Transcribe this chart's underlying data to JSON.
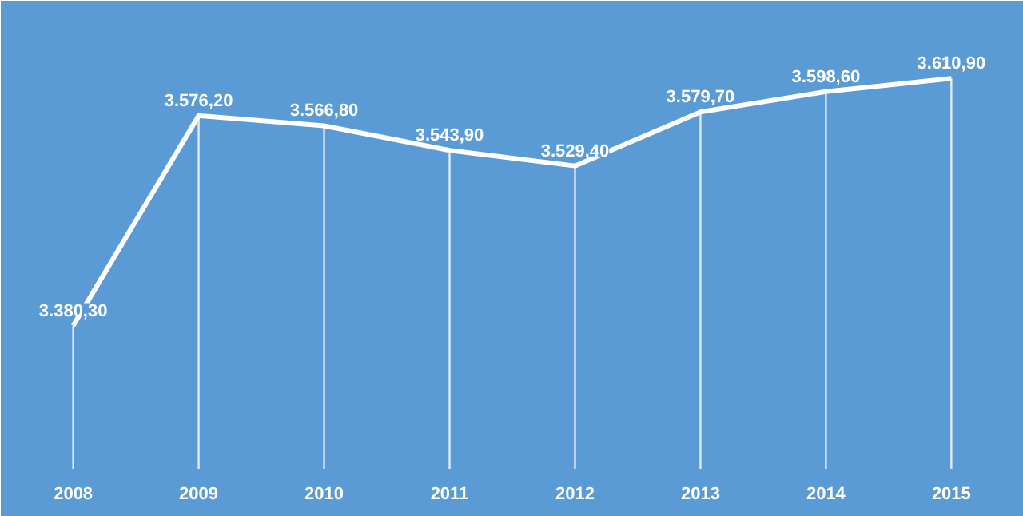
{
  "chart_data": {
    "type": "line",
    "categories": [
      "2008",
      "2009",
      "2010",
      "2011",
      "2012",
      "2013",
      "2014",
      "2015"
    ],
    "series": [
      {
        "color": "#ffffff",
        "values": [
          3380.3,
          3576.2,
          3566.8,
          3543.9,
          3529.4,
          3579.7,
          3598.6,
          3610.9
        ],
        "value_labels": [
          "3.380,30",
          "3.576,20",
          "3.566,80",
          "3.543,90",
          "3.529,40",
          "3.579,70",
          "3.598,60",
          "3.610,90"
        ]
      }
    ],
    "grid": "x",
    "marker": "none",
    "line_style": "solid",
    "tick_labels": "x"
  }
}
